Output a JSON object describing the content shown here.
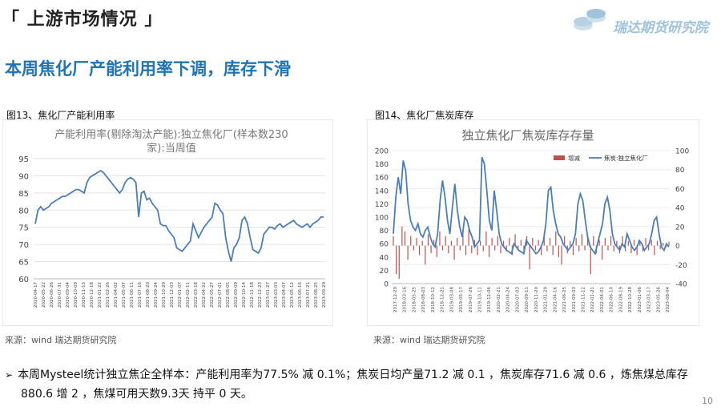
{
  "header": {
    "section_title": "「 上游市场情况 」",
    "logo_text": "瑞达期货研究院"
  },
  "headline": "本周焦化厂产能利用率下调，库存下滑",
  "figures": [
    {
      "label": "图13、焦化厂产能利用率",
      "source": "来源：wind   瑞达期货研究院"
    },
    {
      "label": "图14、焦化厂焦炭库存",
      "source": "来源：wind   瑞达期货研究院"
    }
  ],
  "summary": {
    "lead": "本周Mysteel统计独立焦企全样本：产能利用率为77.5% 减 0.1%；焦炭日均产量71.2 减 0.1 ，焦炭库存71.6 减 0.6 ，炼焦煤总库存",
    "tail": "880.6 增 2 ，焦煤可用天数9.3天 持平 0 天。"
  },
  "page_number": "10",
  "colors": {
    "line": "#4a7ebb",
    "bar": "#c0504d",
    "headline": "#1f73b7"
  },
  "chart_data": [
    {
      "type": "line",
      "title_lines": [
        "产能利用率(剔除淘汰产能):独立焦化厂(样本数230",
        "家):当周值"
      ],
      "ylim": [
        60,
        95
      ],
      "y_ticks": [
        60,
        65,
        70,
        75,
        80,
        85,
        90,
        95
      ],
      "x_ticks": [
        "2020-04-17",
        "2020-05-22",
        "2020-06-26",
        "2020-07-31",
        "2020-09-04",
        "2020-10-09",
        "2020-11-13",
        "2020-12-18",
        "2021-01-22",
        "2021-02-26",
        "2021-04-02",
        "2021-05-07",
        "2021-06-11",
        "2021-07-16",
        "2021-08-20",
        "2021-09-24",
        "2021-10-29",
        "2021-12-03",
        "2022-01-07",
        "2022-02-11",
        "2022-03-18",
        "2022-04-22",
        "2022-05-27",
        "2022-07-01",
        "2022-08-05",
        "2022-09-09",
        "2022-10-14",
        "2022-11-18",
        "2022-12-23",
        "2023-01-27",
        "2023-03-03",
        "2023-04-07",
        "2023-05-12",
        "2023-06-16",
        "2023-07-21",
        "2023-08-25",
        "2023-09-29"
      ],
      "series": [
        {
          "name": "",
          "values": [
            76,
            80,
            81,
            80,
            80.5,
            81,
            82,
            82.5,
            83,
            83.5,
            84,
            84,
            84.5,
            85,
            85.5,
            86,
            86,
            85.5,
            85,
            88,
            89.5,
            90,
            90.5,
            91,
            91.5,
            91,
            90,
            89,
            88,
            87,
            86,
            85,
            86,
            88,
            89,
            89.5,
            89,
            88,
            78,
            85,
            85.5,
            83,
            83.5,
            82,
            81,
            80,
            76,
            75.5,
            75.5,
            74,
            73,
            72,
            69,
            68.5,
            68,
            69,
            70,
            71,
            76,
            74,
            72,
            73.5,
            75,
            76,
            77,
            78,
            82,
            81.5,
            80,
            79,
            72,
            68,
            65,
            69,
            70,
            72,
            77,
            78,
            76,
            72,
            68.5,
            68,
            67.5,
            69,
            73,
            74,
            75,
            75,
            74.5,
            75.5,
            76,
            75,
            75.5,
            76,
            76.5,
            77,
            76,
            75.5,
            75,
            75.5,
            76,
            75,
            76,
            76.5,
            77,
            78,
            78
          ]
        }
      ]
    },
    {
      "type": "bar+line",
      "title": "独立焦化厂焦炭库存存量",
      "y_left": [
        0,
        200
      ],
      "y_left_ticks": [
        0,
        20,
        40,
        60,
        80,
        100,
        120,
        140,
        160,
        180,
        200
      ],
      "y_right": [
        -40,
        100
      ],
      "y_right_ticks": [
        -40,
        -20,
        0,
        20,
        40,
        60,
        80,
        100
      ],
      "x_ticks": [
        "2017-12-29",
        "2018-03-16",
        "2018-05-25",
        "2018-08-03",
        "2018-10-12",
        "2018-12-21",
        "2019-03-08",
        "2019-05-17",
        "2019-07-26",
        "2019-10-11",
        "2019-12-06",
        "2020-02-21",
        "2020-04-24",
        "2020-07-03",
        "2020-09-11",
        "2020-11-20",
        "2021-01-29",
        "2021-04-16",
        "2021-06-25",
        "2021-09-03",
        "2021-11-12",
        "2022-01-21",
        "2022-04-01",
        "2022-06-10",
        "2022-08-19",
        "2022-10-28",
        "2023-01-06",
        "2023-03-17",
        "2023-05-26",
        "2023-08-04"
      ],
      "series": [
        {
          "name": "增减",
          "type": "bar",
          "axis": "right",
          "values": [
            10,
            -30,
            -35,
            20,
            15,
            -15,
            10,
            -5,
            8,
            -10,
            5,
            -20,
            12,
            -8,
            6,
            -12,
            15,
            -5,
            10,
            -8,
            5,
            -15,
            8,
            -5,
            12,
            -10,
            18,
            -8,
            6,
            -10,
            5,
            -6,
            15,
            -12,
            8,
            -5,
            10,
            -8,
            5,
            -6,
            8,
            -10,
            12,
            -5,
            6,
            -8,
            10,
            -25,
            8,
            -5,
            6,
            -10,
            12,
            -6,
            8,
            -10,
            15,
            -12,
            -20,
            10,
            -8,
            5,
            -10,
            8,
            -6,
            12,
            -5,
            8,
            -30,
            10,
            -8,
            6,
            -15,
            8,
            -5,
            10,
            -6,
            5,
            -8,
            10,
            -6,
            5,
            -8,
            6,
            -10,
            5,
            -6,
            8,
            -5,
            6,
            -10,
            5,
            -4,
            3,
            -2,
            4
          ]
        },
        {
          "name": "焦炭:独立焦化厂",
          "type": "line",
          "axis": "left",
          "values": [
            75,
            130,
            160,
            135,
            185,
            170,
            120,
            95,
            85,
            80,
            90,
            75,
            70,
            80,
            85,
            70,
            60,
            55,
            75,
            125,
            155,
            130,
            95,
            75,
            115,
            150,
            110,
            85,
            70,
            100,
            95,
            80,
            70,
            55,
            60,
            65,
            190,
            180,
            140,
            95,
            80,
            140,
            110,
            75,
            60,
            55,
            50,
            48,
            45,
            60,
            55,
            50,
            48,
            45,
            65,
            60,
            55,
            50,
            45,
            48,
            55,
            65,
            90,
            140,
            145,
            110,
            90,
            75,
            70,
            60,
            55,
            50,
            55,
            60,
            75,
            120,
            135,
            125,
            95,
            70,
            55,
            50,
            45,
            60,
            75,
            90,
            120,
            130,
            110,
            75,
            60,
            55,
            50,
            60,
            55,
            75,
            65,
            55,
            50,
            55,
            65,
            60,
            50,
            55,
            60,
            75,
            95,
            100,
            75,
            55,
            50,
            60,
            55
          ]
        }
      ]
    }
  ]
}
